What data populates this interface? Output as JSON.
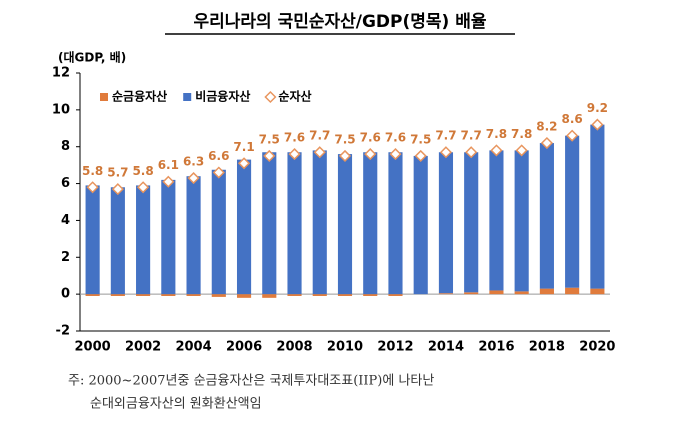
{
  "chart_data": {
    "type": "bar",
    "title": "우리나라의 국민순자산/GDP(명목) 배율",
    "y_label": "(대GDP, 배)",
    "categories": [
      "2000",
      null,
      "2002",
      null,
      "2004",
      null,
      "2006",
      null,
      "2008",
      null,
      "2010",
      null,
      "2012",
      null,
      "2014",
      null,
      "2016",
      null,
      "2018",
      null,
      "2020"
    ],
    "series": [
      {
        "name": "순금융자산",
        "type": "bar",
        "color": "#e07b3c",
        "values": [
          -0.1,
          -0.1,
          -0.1,
          -0.1,
          -0.1,
          -0.15,
          -0.2,
          -0.2,
          -0.1,
          -0.1,
          -0.1,
          -0.1,
          -0.1,
          0.0,
          0.05,
          0.1,
          0.2,
          0.15,
          0.3,
          0.35,
          0.3
        ]
      },
      {
        "name": "비금융자산",
        "type": "bar",
        "color": "#4472c4",
        "values": [
          5.9,
          5.8,
          5.9,
          6.2,
          6.4,
          6.75,
          7.3,
          7.7,
          7.7,
          7.8,
          7.6,
          7.7,
          7.7,
          7.5,
          7.65,
          7.6,
          7.6,
          7.65,
          7.9,
          8.25,
          8.9
        ]
      },
      {
        "name": "순자산",
        "type": "scatter",
        "color": "#e8955e",
        "values": [
          5.8,
          5.7,
          5.8,
          6.1,
          6.3,
          6.6,
          7.1,
          7.5,
          7.6,
          7.7,
          7.5,
          7.6,
          7.6,
          7.5,
          7.7,
          7.7,
          7.8,
          7.8,
          8.2,
          8.6,
          9.2
        ]
      }
    ],
    "ylim": [
      -2,
      12
    ],
    "yticks": [
      -2,
      0,
      2,
      4,
      6,
      8,
      10,
      12
    ],
    "notes": [
      "주: 2000~2007년중 순금융자산은 국제투자대조표(IIP)에 나타난",
      "순대외금융자산의 원화환산액임"
    ]
  }
}
